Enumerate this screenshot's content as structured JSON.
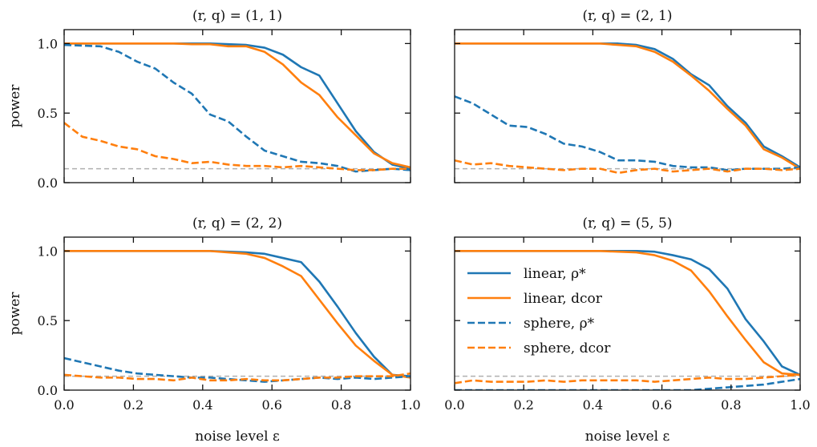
{
  "chart_data": {
    "type": "line",
    "x": [
      0.0,
      0.0526,
      0.1053,
      0.1579,
      0.2105,
      0.2632,
      0.3158,
      0.3684,
      0.4211,
      0.4737,
      0.5263,
      0.5789,
      0.6316,
      0.6842,
      0.7368,
      0.7895,
      0.8421,
      0.8947,
      0.9474,
      1.0
    ],
    "xlim": [
      0.0,
      1.0
    ],
    "ylim": [
      0.0,
      1.1
    ],
    "xticks": [
      "0.0",
      "0.2",
      "0.4",
      "0.6",
      "0.8",
      "1.0"
    ],
    "yticks": [
      "0.0",
      "0.5",
      "1.0"
    ],
    "xlabel": "noise level ε",
    "ylabel": "power",
    "reference_level": 0.1,
    "legend_placement": "inside lower-right panel, center-left",
    "colors": {
      "rho": "#1f77b4",
      "dcor": "#ff7f0e",
      "reference": "#b0b0b0"
    },
    "legend": [
      {
        "label": "linear,  ρ*",
        "color": "#1f77b4",
        "dashed": false
      },
      {
        "label": "linear,  dcor",
        "color": "#ff7f0e",
        "dashed": false
      },
      {
        "label": "sphere,  ρ*",
        "color": "#1f77b4",
        "dashed": true
      },
      {
        "label": "sphere,  dcor",
        "color": "#ff7f0e",
        "dashed": true
      }
    ],
    "panels": [
      {
        "title": "(r, q) = (1, 1)",
        "series": [
          {
            "name": "linear,  ρ*",
            "style": "solid",
            "color": "#1f77b4",
            "values": [
              1.0,
              1.0,
              1.0,
              1.0,
              1.0,
              1.0,
              1.0,
              1.0,
              1.0,
              0.995,
              0.99,
              0.97,
              0.92,
              0.83,
              0.77,
              0.57,
              0.37,
              0.22,
              0.13,
              0.1
            ]
          },
          {
            "name": "linear,  dcor",
            "style": "solid",
            "color": "#ff7f0e",
            "values": [
              1.0,
              1.0,
              1.0,
              1.0,
              1.0,
              1.0,
              1.0,
              0.995,
              0.995,
              0.98,
              0.98,
              0.94,
              0.85,
              0.72,
              0.63,
              0.47,
              0.34,
              0.21,
              0.14,
              0.11
            ]
          },
          {
            "name": "sphere,  ρ*",
            "style": "dashed",
            "color": "#1f77b4",
            "values": [
              0.99,
              0.985,
              0.98,
              0.94,
              0.87,
              0.82,
              0.72,
              0.64,
              0.49,
              0.44,
              0.33,
              0.23,
              0.19,
              0.15,
              0.14,
              0.12,
              0.08,
              0.09,
              0.1,
              0.09
            ]
          },
          {
            "name": "sphere,  dcor",
            "style": "dashed",
            "color": "#ff7f0e",
            "values": [
              0.43,
              0.33,
              0.3,
              0.26,
              0.24,
              0.19,
              0.17,
              0.14,
              0.15,
              0.13,
              0.12,
              0.12,
              0.11,
              0.12,
              0.11,
              0.1,
              0.09,
              0.09,
              0.1,
              0.1
            ]
          }
        ]
      },
      {
        "title": "(r, q) = (2, 1)",
        "series": [
          {
            "name": "linear,  ρ*",
            "style": "solid",
            "color": "#1f77b4",
            "values": [
              1.0,
              1.0,
              1.0,
              1.0,
              1.0,
              1.0,
              1.0,
              1.0,
              1.0,
              1.0,
              0.99,
              0.96,
              0.89,
              0.78,
              0.7,
              0.55,
              0.43,
              0.26,
              0.19,
              0.11
            ]
          },
          {
            "name": "linear,  dcor",
            "style": "solid",
            "color": "#ff7f0e",
            "values": [
              1.0,
              1.0,
              1.0,
              1.0,
              1.0,
              1.0,
              1.0,
              1.0,
              1.0,
              0.99,
              0.98,
              0.94,
              0.87,
              0.77,
              0.66,
              0.53,
              0.41,
              0.24,
              0.18,
              0.1
            ]
          },
          {
            "name": "sphere,  ρ*",
            "style": "dashed",
            "color": "#1f77b4",
            "values": [
              0.62,
              0.57,
              0.49,
              0.41,
              0.4,
              0.35,
              0.28,
              0.26,
              0.22,
              0.16,
              0.16,
              0.15,
              0.12,
              0.11,
              0.11,
              0.09,
              0.1,
              0.1,
              0.1,
              0.11
            ]
          },
          {
            "name": "sphere,  dcor",
            "style": "dashed",
            "color": "#ff7f0e",
            "values": [
              0.16,
              0.13,
              0.14,
              0.12,
              0.11,
              0.1,
              0.09,
              0.1,
              0.1,
              0.07,
              0.09,
              0.1,
              0.08,
              0.09,
              0.1,
              0.08,
              0.1,
              0.1,
              0.09,
              0.1
            ]
          }
        ]
      },
      {
        "title": "(r, q) = (2, 2)",
        "series": [
          {
            "name": "linear,  ρ*",
            "style": "solid",
            "color": "#1f77b4",
            "values": [
              1.0,
              1.0,
              1.0,
              1.0,
              1.0,
              1.0,
              1.0,
              1.0,
              1.0,
              0.995,
              0.99,
              0.98,
              0.95,
              0.92,
              0.78,
              0.6,
              0.41,
              0.24,
              0.11,
              0.1
            ]
          },
          {
            "name": "linear,  dcor",
            "style": "solid",
            "color": "#ff7f0e",
            "values": [
              1.0,
              1.0,
              1.0,
              1.0,
              1.0,
              1.0,
              1.0,
              1.0,
              1.0,
              0.99,
              0.98,
              0.95,
              0.89,
              0.82,
              0.65,
              0.48,
              0.32,
              0.21,
              0.11,
              0.09
            ]
          },
          {
            "name": "sphere,  ρ*",
            "style": "dashed",
            "color": "#1f77b4",
            "values": [
              0.23,
              0.2,
              0.17,
              0.14,
              0.12,
              0.11,
              0.1,
              0.09,
              0.09,
              0.08,
              0.07,
              0.06,
              0.07,
              0.08,
              0.09,
              0.08,
              0.09,
              0.08,
              0.09,
              0.1
            ]
          },
          {
            "name": "sphere,  dcor",
            "style": "dashed",
            "color": "#ff7f0e",
            "values": [
              0.11,
              0.1,
              0.09,
              0.09,
              0.08,
              0.08,
              0.07,
              0.09,
              0.07,
              0.07,
              0.08,
              0.07,
              0.07,
              0.08,
              0.09,
              0.09,
              0.1,
              0.1,
              0.1,
              0.12
            ]
          }
        ]
      },
      {
        "title": "(r, q) = (5, 5)",
        "series": [
          {
            "name": "linear,  ρ*",
            "style": "solid",
            "color": "#1f77b4",
            "values": [
              1.0,
              1.0,
              1.0,
              1.0,
              1.0,
              1.0,
              1.0,
              1.0,
              1.0,
              1.0,
              1.0,
              0.995,
              0.97,
              0.94,
              0.87,
              0.73,
              0.51,
              0.35,
              0.17,
              0.11
            ]
          },
          {
            "name": "linear,  dcor",
            "style": "solid",
            "color": "#ff7f0e",
            "values": [
              1.0,
              1.0,
              1.0,
              1.0,
              1.0,
              1.0,
              1.0,
              1.0,
              1.0,
              0.995,
              0.99,
              0.97,
              0.93,
              0.86,
              0.71,
              0.53,
              0.36,
              0.2,
              0.12,
              0.11
            ]
          },
          {
            "name": "sphere,  ρ*",
            "style": "dashed",
            "color": "#1f77b4",
            "values": [
              0.0,
              0.0,
              0.0,
              0.0,
              0.0,
              0.0,
              0.0,
              0.0,
              0.0,
              0.0,
              0.0,
              0.0,
              0.0,
              0.0,
              0.01,
              0.02,
              0.03,
              0.04,
              0.06,
              0.08
            ]
          },
          {
            "name": "sphere,  dcor",
            "style": "dashed",
            "color": "#ff7f0e",
            "values": [
              0.05,
              0.07,
              0.06,
              0.06,
              0.06,
              0.07,
              0.06,
              0.07,
              0.07,
              0.07,
              0.07,
              0.06,
              0.07,
              0.08,
              0.09,
              0.08,
              0.08,
              0.09,
              0.1,
              0.11
            ]
          }
        ]
      }
    ]
  }
}
